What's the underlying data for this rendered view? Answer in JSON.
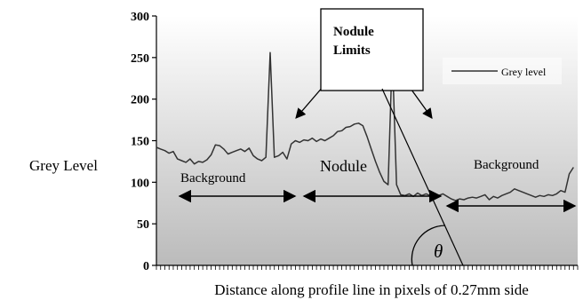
{
  "chart_data": {
    "type": "line",
    "title": "",
    "xlabel": "Distance along profile line in pixels of 0.27mm side",
    "ylabel": "Grey Level",
    "ylim": [
      0,
      300
    ],
    "yticks": [
      0,
      50,
      100,
      150,
      200,
      250,
      300
    ],
    "xlim": [
      0,
      100
    ],
    "x_tick_count": 100,
    "grid": false,
    "legend": {
      "position": "top-right",
      "entries": [
        "Grey level"
      ]
    },
    "colors": {
      "line": "#333333",
      "arrow": "#000000",
      "plot_top": "#ffffff",
      "plot_bottom": "#bbbbbb"
    },
    "series": [
      {
        "name": "Grey level",
        "x": [
          0,
          1,
          2,
          3,
          4,
          5,
          6,
          7,
          8,
          9,
          10,
          11,
          12,
          13,
          14,
          15,
          16,
          17,
          18,
          19,
          20,
          21,
          22,
          23,
          24,
          25,
          26,
          27,
          28,
          29,
          30,
          31,
          32,
          33,
          34,
          35,
          36,
          37,
          38,
          39,
          40,
          41,
          42,
          43,
          44,
          45,
          46,
          47,
          48,
          49,
          50,
          51,
          52,
          53,
          54,
          55,
          56,
          57,
          58,
          59,
          60,
          61,
          62,
          63,
          64,
          65,
          66,
          67,
          68,
          69,
          70,
          71,
          72,
          73,
          74,
          75,
          76,
          77,
          78,
          79,
          80,
          81,
          82,
          83,
          84,
          85,
          86,
          87,
          88,
          89,
          90,
          91,
          92,
          93,
          94,
          95,
          96,
          97,
          98,
          99
        ],
        "values": [
          142,
          140,
          138,
          135,
          137,
          128,
          126,
          124,
          128,
          122,
          125,
          124,
          127,
          133,
          145,
          144,
          140,
          134,
          136,
          138,
          140,
          137,
          141,
          132,
          128,
          126,
          130,
          256,
          130,
          132,
          136,
          128,
          146,
          150,
          148,
          151,
          150,
          153,
          149,
          152,
          150,
          153,
          156,
          161,
          162,
          166,
          167,
          170,
          171,
          168,
          155,
          140,
          125,
          112,
          101,
          97,
          255,
          97,
          85,
          84,
          86,
          83,
          87,
          84,
          86,
          84,
          82,
          84,
          86,
          83,
          80,
          78,
          80,
          79,
          81,
          82,
          81,
          83,
          85,
          79,
          83,
          81,
          84,
          86,
          88,
          92,
          90,
          88,
          86,
          84,
          82,
          84,
          83,
          85,
          84,
          86,
          90,
          88,
          110,
          118
        ]
      }
    ],
    "annotations": {
      "callout": "Nodule\nLimits",
      "regions": [
        "Background",
        "Nodule",
        "Background"
      ],
      "angle_symbol": "θ"
    }
  }
}
